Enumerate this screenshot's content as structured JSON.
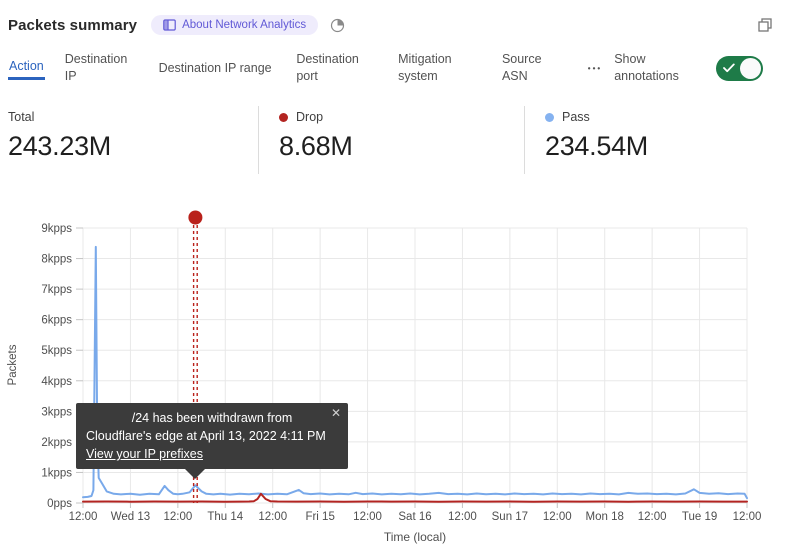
{
  "header": {
    "title": "Packets summary",
    "badge_label": "About Network Analytics"
  },
  "tabs": {
    "items": [
      {
        "label": "Action",
        "active": true
      },
      {
        "label": "Destination IP"
      },
      {
        "label": "Destination IP range"
      },
      {
        "label": "Destination port"
      },
      {
        "label": "Mitigation system"
      },
      {
        "label": "Source ASN"
      }
    ],
    "more": "•••",
    "annotations_toggle": {
      "label": "Show annotations",
      "state": "on"
    }
  },
  "stats": [
    {
      "label": "Total",
      "value": "243.23M"
    },
    {
      "label": "Drop",
      "value": "8.68M",
      "color": "#b32421"
    },
    {
      "label": "Pass",
      "value": "234.54M",
      "color": "#85b2f0"
    }
  ],
  "chart_data": {
    "type": "line",
    "title": "Packets summary",
    "ylabel": "Packets",
    "xlabel": "Time (local)",
    "ylim": [
      0,
      9000
    ],
    "grid": true,
    "y_ticks": [
      "0pps",
      "1kpps",
      "2kpps",
      "3kpps",
      "4kpps",
      "5kpps",
      "6kpps",
      "7kpps",
      "8kpps",
      "9kpps"
    ],
    "x_ticks": [
      "12:00",
      "Wed 13",
      "12:00",
      "Thu 14",
      "12:00",
      "Fri 15",
      "12:00",
      "Sat 16",
      "12:00",
      "Sun 17",
      "12:00",
      "Mon 18",
      "12:00",
      "Tue 19",
      "12:00"
    ],
    "x_unit_note": "x in tick index units, 12 hours per tick",
    "series": [
      {
        "name": "Pass",
        "color": "#79a9ea",
        "points": [
          [
            0,
            190
          ],
          [
            0.1,
            200
          ],
          [
            0.18,
            230
          ],
          [
            0.22,
            420
          ],
          [
            0.27,
            8380
          ],
          [
            0.3,
            2400
          ],
          [
            0.33,
            820
          ],
          [
            0.4,
            640
          ],
          [
            0.5,
            380
          ],
          [
            0.65,
            300
          ],
          [
            0.8,
            280
          ],
          [
            1.0,
            305
          ],
          [
            1.2,
            270
          ],
          [
            1.4,
            300
          ],
          [
            1.6,
            285
          ],
          [
            1.72,
            560
          ],
          [
            1.8,
            420
          ],
          [
            1.9,
            305
          ],
          [
            2.0,
            285
          ],
          [
            2.1,
            300
          ],
          [
            2.25,
            350
          ],
          [
            2.37,
            580
          ],
          [
            2.5,
            380
          ],
          [
            2.6,
            300
          ],
          [
            2.75,
            280
          ],
          [
            2.9,
            305
          ],
          [
            3.1,
            275
          ],
          [
            3.3,
            300
          ],
          [
            3.5,
            285
          ],
          [
            3.7,
            310
          ],
          [
            3.9,
            280
          ],
          [
            4.1,
            300
          ],
          [
            4.3,
            285
          ],
          [
            4.55,
            430
          ],
          [
            4.65,
            320
          ],
          [
            4.8,
            290
          ],
          [
            5.0,
            310
          ],
          [
            5.2,
            280
          ],
          [
            5.4,
            305
          ],
          [
            5.6,
            285
          ],
          [
            5.75,
            335
          ],
          [
            5.9,
            290
          ],
          [
            6.1,
            310
          ],
          [
            6.3,
            280
          ],
          [
            6.5,
            300
          ],
          [
            6.7,
            285
          ],
          [
            6.9,
            310
          ],
          [
            7.1,
            280
          ],
          [
            7.3,
            300
          ],
          [
            7.5,
            330
          ],
          [
            7.7,
            290
          ],
          [
            7.9,
            305
          ],
          [
            8.1,
            280
          ],
          [
            8.3,
            310
          ],
          [
            8.5,
            285
          ],
          [
            8.7,
            300
          ],
          [
            8.9,
            280
          ],
          [
            9.1,
            310
          ],
          [
            9.3,
            290
          ],
          [
            9.5,
            300
          ],
          [
            9.7,
            280
          ],
          [
            9.9,
            310
          ],
          [
            10.1,
            290
          ],
          [
            10.3,
            300
          ],
          [
            10.5,
            280
          ],
          [
            10.7,
            310
          ],
          [
            10.9,
            290
          ],
          [
            11.1,
            300
          ],
          [
            11.3,
            280
          ],
          [
            11.5,
            330
          ],
          [
            11.7,
            300
          ],
          [
            11.9,
            310
          ],
          [
            12.1,
            290
          ],
          [
            12.3,
            300
          ],
          [
            12.5,
            280
          ],
          [
            12.7,
            310
          ],
          [
            12.88,
            450
          ],
          [
            13.0,
            330
          ],
          [
            13.2,
            300
          ],
          [
            13.4,
            320
          ],
          [
            13.6,
            290
          ],
          [
            13.8,
            310
          ],
          [
            13.95,
            300
          ],
          [
            14,
            160
          ]
        ]
      },
      {
        "name": "Drop",
        "color": "#b32421",
        "points": [
          [
            0,
            45
          ],
          [
            0.5,
            50
          ],
          [
            1,
            42
          ],
          [
            1.5,
            50
          ],
          [
            2,
            45
          ],
          [
            2.5,
            48
          ],
          [
            3,
            42
          ],
          [
            3.3,
            46
          ],
          [
            3.5,
            50
          ],
          [
            3.6,
            55
          ],
          [
            3.68,
            130
          ],
          [
            3.75,
            300
          ],
          [
            3.85,
            130
          ],
          [
            3.95,
            60
          ],
          [
            4.1,
            48
          ],
          [
            4.5,
            45
          ],
          [
            5,
            48
          ],
          [
            5.5,
            42
          ],
          [
            6,
            48
          ],
          [
            6.5,
            45
          ],
          [
            7,
            48
          ],
          [
            7.5,
            42
          ],
          [
            8,
            48
          ],
          [
            8.5,
            45
          ],
          [
            9,
            48
          ],
          [
            9.5,
            42
          ],
          [
            10,
            48
          ],
          [
            10.5,
            45
          ],
          [
            11,
            48
          ],
          [
            11.5,
            42
          ],
          [
            12,
            48
          ],
          [
            12.5,
            45
          ],
          [
            13,
            48
          ],
          [
            13.5,
            45
          ],
          [
            14,
            45
          ]
        ]
      }
    ],
    "annotation": {
      "x_unit": 2.37,
      "color": "#b9211b",
      "tooltip": {
        "line1": "/24 has been withdrawn from",
        "line2": "Cloudflare's edge at April 13, 2022 4:11 PM",
        "link_label": "View your IP prefixes",
        "close_label": "✕"
      }
    }
  }
}
